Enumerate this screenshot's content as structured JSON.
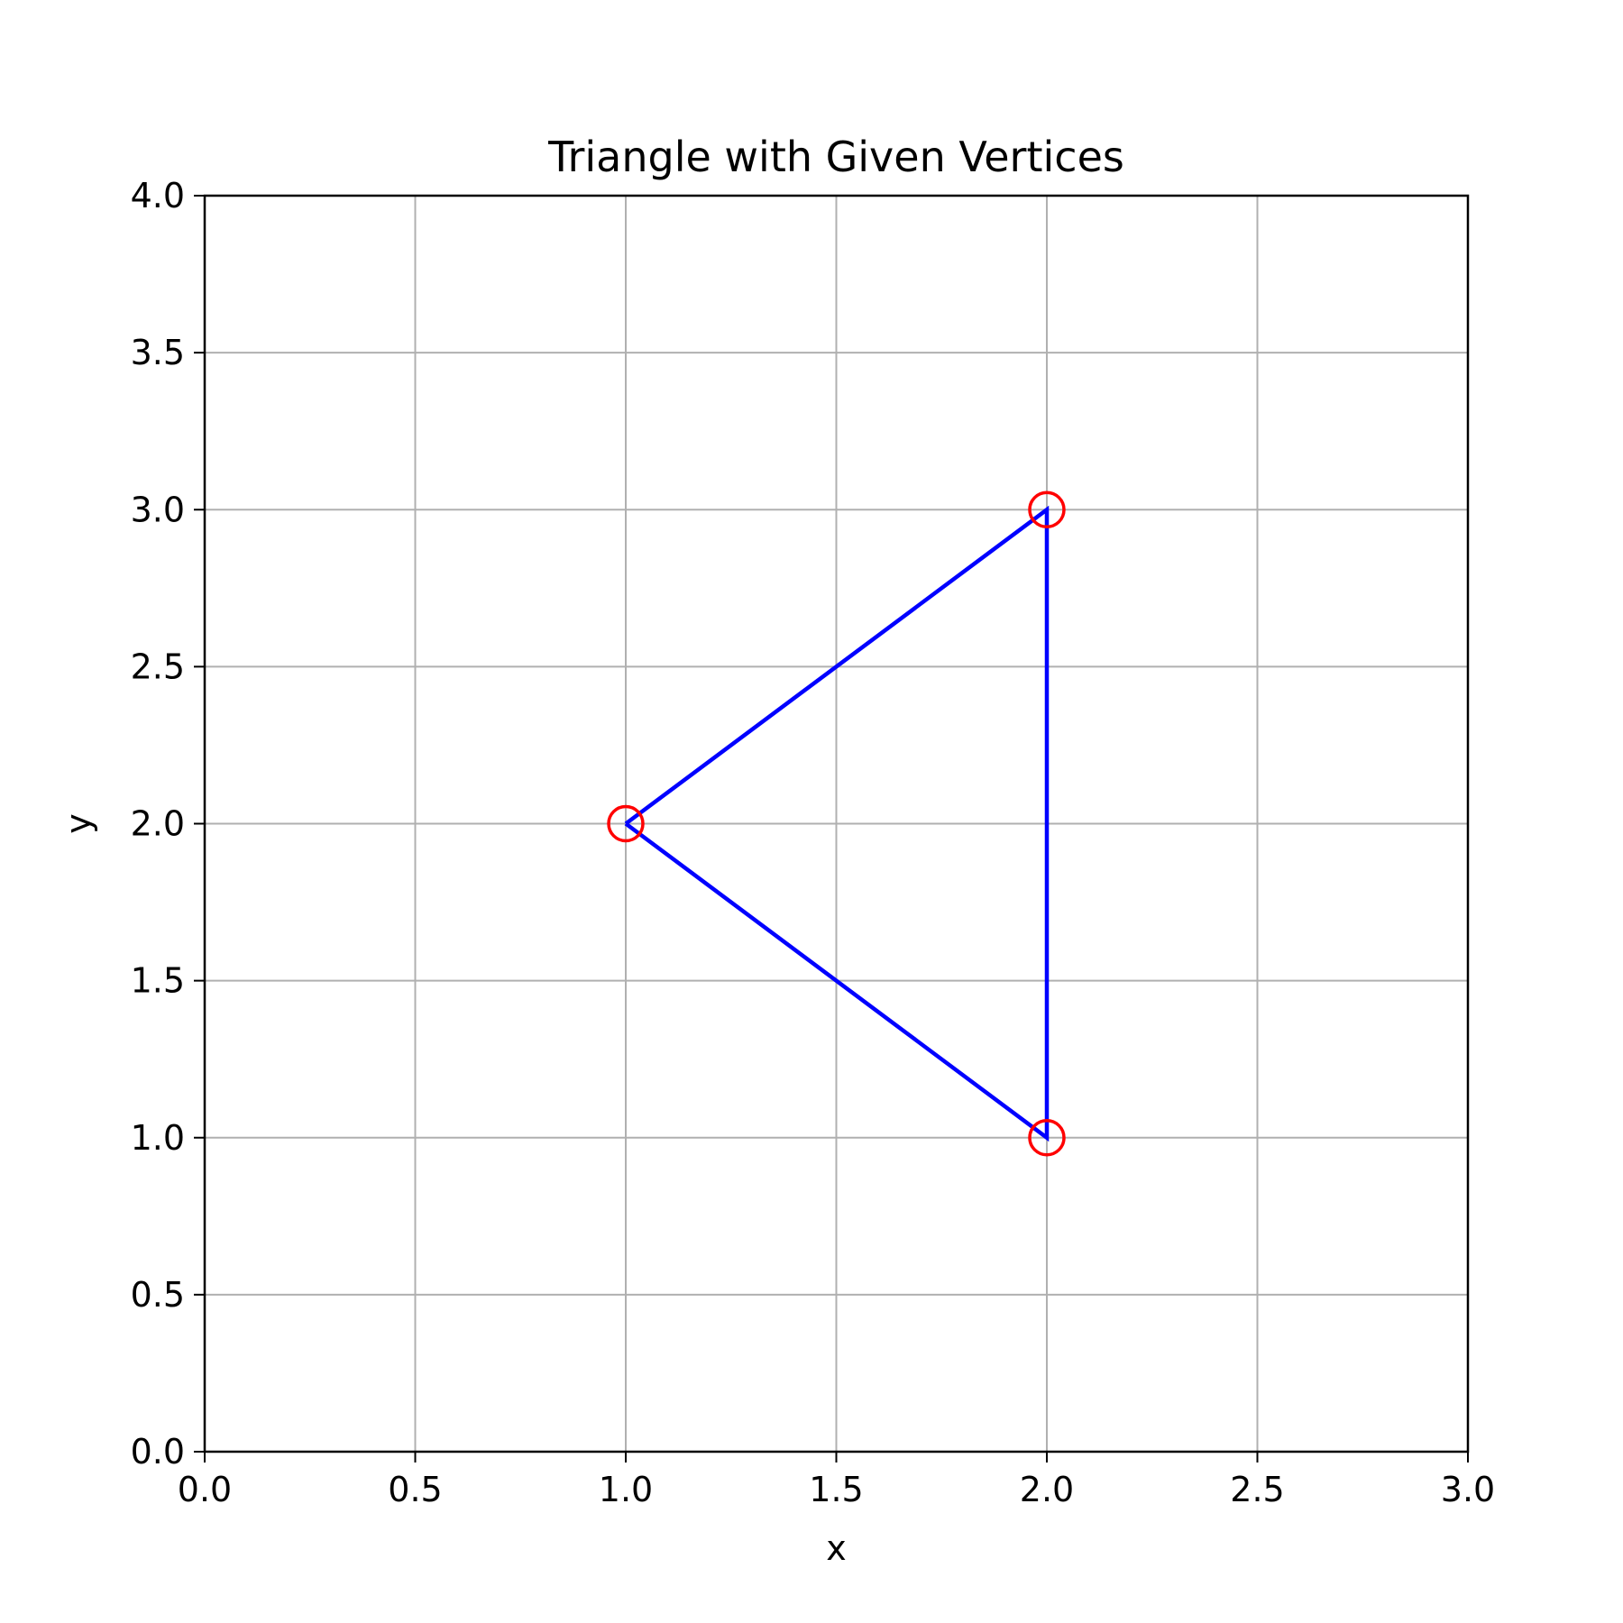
{
  "chart_data": {
    "type": "line",
    "title": "Triangle with Given Vertices",
    "xlabel": "x",
    "ylabel": "y",
    "xlim": [
      0.0,
      3.0
    ],
    "ylim": [
      0.0,
      4.0
    ],
    "xticks": [
      "0.0",
      "0.5",
      "1.0",
      "1.5",
      "2.0",
      "2.5",
      "3.0"
    ],
    "yticks": [
      "0.0",
      "0.5",
      "1.0",
      "1.5",
      "2.0",
      "2.5",
      "3.0",
      "3.5",
      "4.0"
    ],
    "grid": true,
    "series": [
      {
        "x": [
          1,
          2,
          2,
          1
        ],
        "y": [
          2,
          3,
          1,
          2
        ],
        "color": "#0000ff",
        "marker": "none"
      },
      {
        "x": [
          1,
          2,
          2
        ],
        "y": [
          2,
          3,
          1
        ],
        "color": "#ff0000",
        "marker": "open-circle"
      }
    ]
  }
}
